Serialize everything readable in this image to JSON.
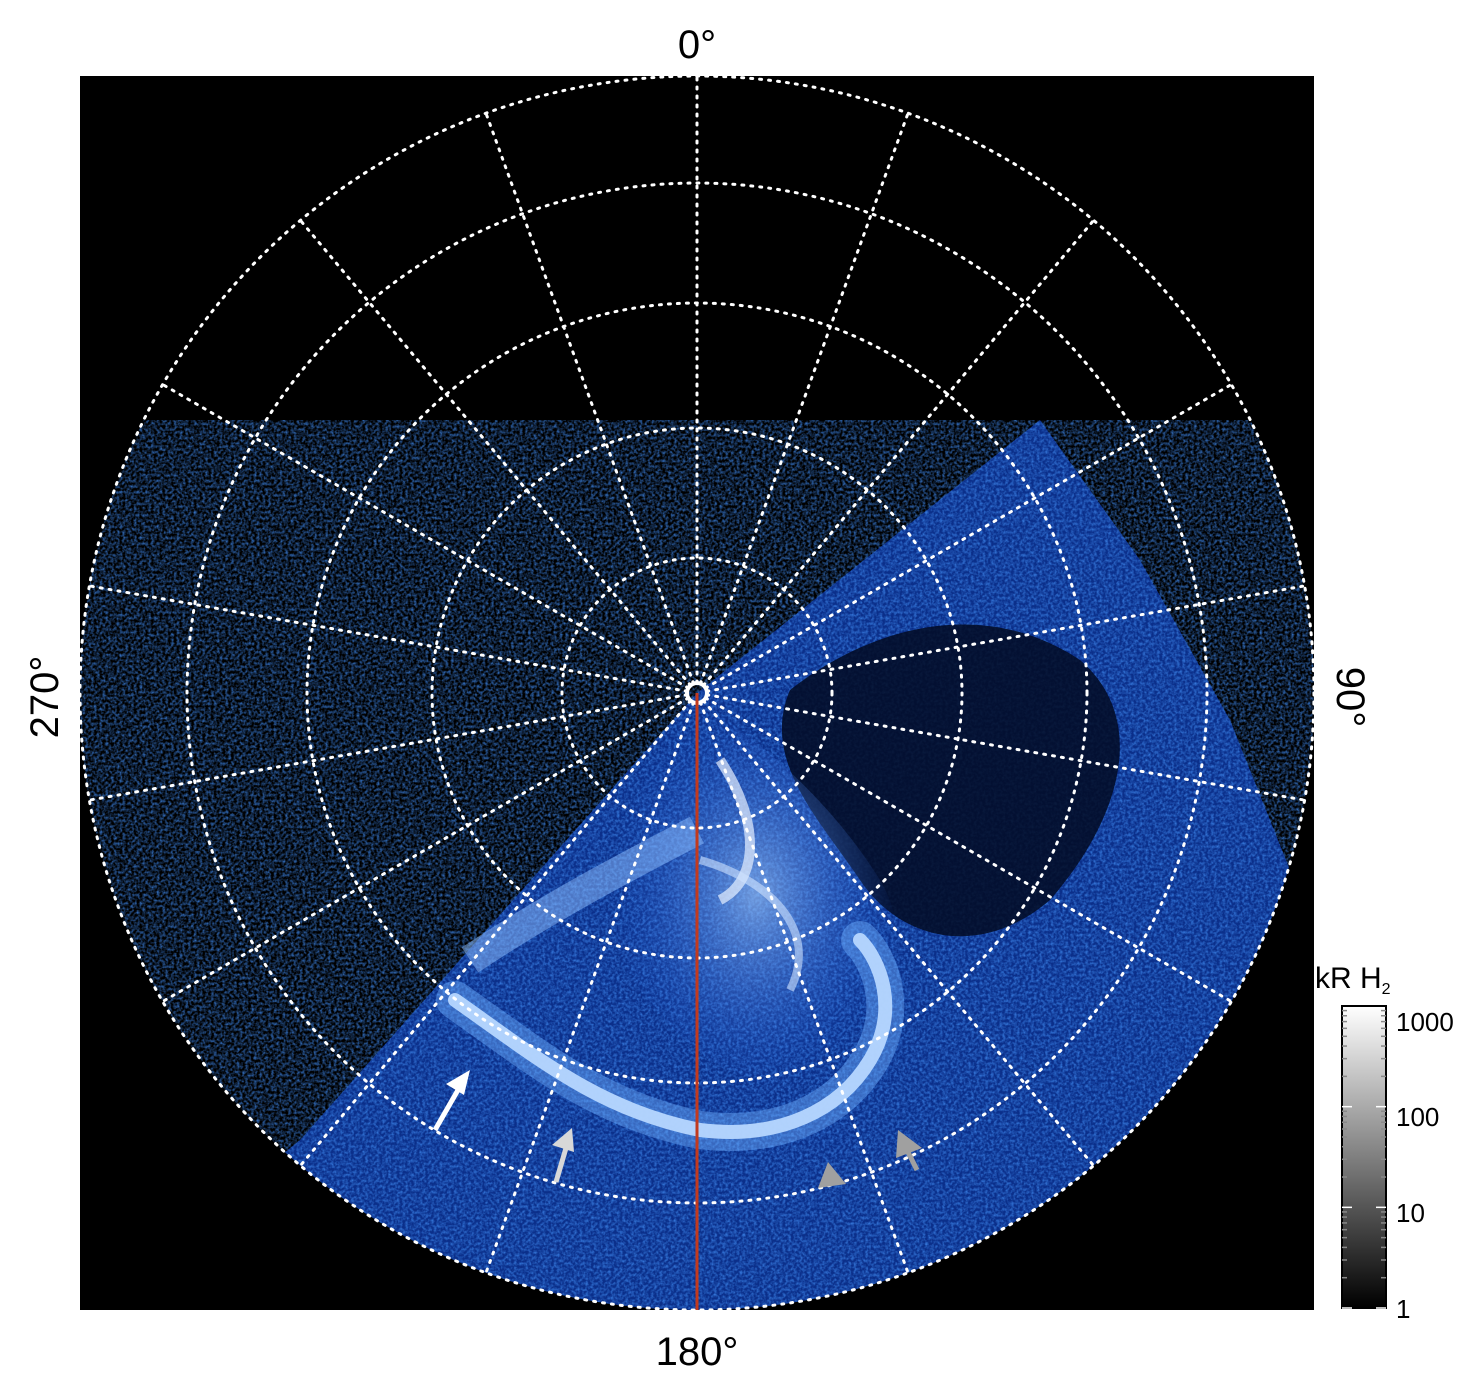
{
  "figure": {
    "azimuth_labels": {
      "top": "0°",
      "bottom": "180°",
      "left": "270°",
      "right": "90°"
    },
    "colorbar": {
      "title_main": "kR H",
      "title_sub": "2",
      "scale": "log",
      "ticks": [
        "1000",
        "100",
        "10",
        "1"
      ],
      "palette": "grayscale"
    },
    "image_palette": {
      "background": "#000000",
      "aurora_low": "#0a3aa0",
      "aurora_mid": "#2f7bff",
      "aurora_high": "#e8f2ff",
      "grid": "#ffffff",
      "meridian_line": "#c23a1e"
    },
    "annotations": {
      "arrows": [
        {
          "color": "white"
        },
        {
          "color": "lightgray"
        },
        {
          "color": "gray"
        },
        {
          "color": "gray"
        }
      ]
    }
  }
}
